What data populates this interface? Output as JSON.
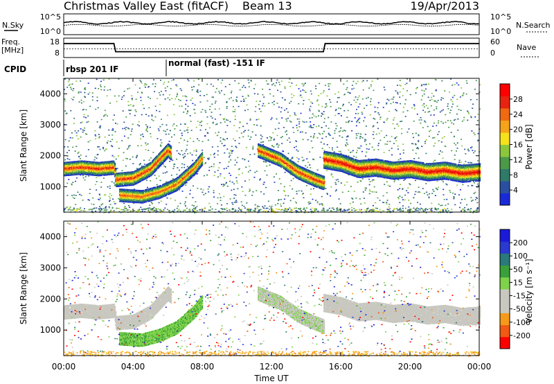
{
  "header": {
    "title": "Christmas Valley East (fitACF)",
    "beam": "Beam 13",
    "date": "19/Apr/2013"
  },
  "params": {
    "nsky_label": "N.Sky",
    "nsky_ticks": [
      "10^5",
      "10^0"
    ],
    "nsearch_label": "N.Search",
    "nsearch_ticks": [
      "10^5",
      "10^0"
    ],
    "freq_label_line1": "Freq.",
    "freq_label_line2": "[MHz]",
    "freq_ticks": [
      "18",
      "8"
    ],
    "nave_label": "Nave",
    "nave_ticks": [
      "60",
      "0"
    ],
    "cpid_label": "CPID",
    "cpid_segments": [
      {
        "label": "rbsp 201 IF",
        "start_hour": 0
      },
      {
        "label": "normal (fast) -151 IF",
        "start_hour": 6
      }
    ]
  },
  "colors": {
    "power_scale": [
      "#1a2ad8",
      "#2b4fa0",
      "#2f7a68",
      "#4a9a4a",
      "#8cc63f",
      "#f6e11b",
      "#f7a21b",
      "#f06a12",
      "#e8230f",
      "#ff0000"
    ],
    "velocity_scale": [
      "#ff0000",
      "#f05a14",
      "#f59a1a",
      "#c8c8c0",
      "#c8c8c0",
      "#7fd24a",
      "#3aa03a",
      "#2a7a7a",
      "#2a3ad0",
      "#1a1ad8"
    ],
    "background": "#ffffff"
  },
  "chart_data": [
    {
      "type": "heatmap",
      "panel": "power",
      "ylabel": "Slant Range [km]",
      "yticks": [
        "4000",
        "3000",
        "2000",
        "1000"
      ],
      "ylim": [
        180,
        4500
      ],
      "xlim": [
        0,
        24
      ],
      "colorbar_label": "Power [dB]",
      "colorbar_ticks": [
        "28",
        "24",
        "20",
        "16",
        "12",
        "8",
        "4"
      ],
      "colorbar_range": [
        0,
        30
      ],
      "bands": [
        {
          "name": "main",
          "points": [
            [
              0,
              1600
            ],
            [
              1,
              1650
            ],
            [
              2,
              1600
            ],
            [
              2.9,
              1650
            ],
            [
              3,
              1250
            ],
            [
              4,
              1300
            ],
            [
              5,
              1600
            ],
            [
              6,
              2200
            ],
            [
              6.2,
              2100
            ]
          ],
          "value": 24,
          "width": 220
        },
        {
          "name": "lower",
          "points": [
            [
              3.2,
              750
            ],
            [
              4.5,
              700
            ],
            [
              5.5,
              850
            ],
            [
              6.5,
              1100
            ],
            [
              7.5,
              1600
            ],
            [
              8,
              1950
            ]
          ],
          "value": 22,
          "width": 200
        },
        {
          "name": "evening",
          "points": [
            [
              11.2,
              2200
            ],
            [
              12.5,
              1900
            ],
            [
              13.5,
              1500
            ],
            [
              14.5,
              1250
            ],
            [
              15,
              1150
            ]
          ],
          "value": 24,
          "width": 220
        },
        {
          "name": "late",
          "points": [
            [
              15,
              1900
            ],
            [
              16,
              1800
            ],
            [
              17,
              1600
            ],
            [
              18,
              1650
            ],
            [
              19,
              1550
            ],
            [
              20,
              1600
            ],
            [
              21,
              1500
            ],
            [
              22,
              1550
            ],
            [
              23,
              1450
            ],
            [
              24,
              1500
            ]
          ],
          "value": 26,
          "width": 280
        }
      ]
    },
    {
      "type": "heatmap",
      "panel": "velocity",
      "ylabel": "Slant Range [km]",
      "yticks": [
        "4000",
        "3000",
        "2000",
        "1000"
      ],
      "ylim": [
        180,
        4500
      ],
      "xlim": [
        0,
        24
      ],
      "xlabel": "Time UT",
      "xticks": [
        "00:00",
        "04:00",
        "08:00",
        "12:00",
        "16:00",
        "20:00",
        "00:00"
      ],
      "colorbar_label": "Velocity [m s⁻¹]",
      "colorbar_ticks": [
        "200",
        "100",
        "50",
        "15",
        "-15",
        "-50",
        "-100",
        "-200"
      ],
      "colorbar_range": [
        -250,
        250
      ]
    }
  ]
}
